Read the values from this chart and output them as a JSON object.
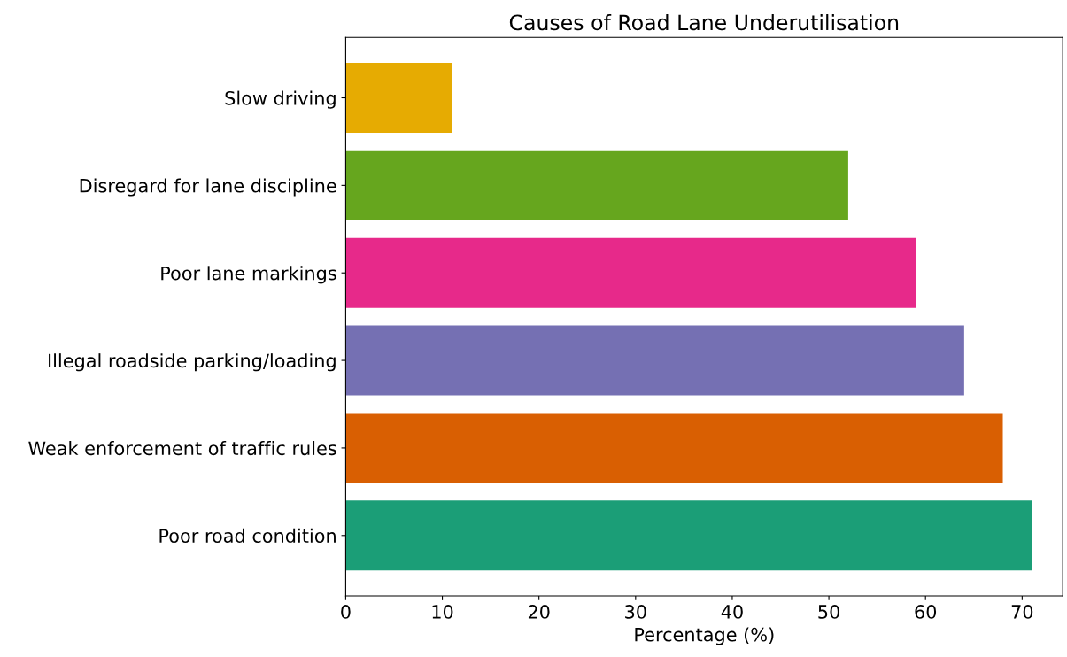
{
  "chart_data": {
    "type": "bar",
    "orientation": "horizontal",
    "title": "Causes of Road Lane Underutilisation",
    "xlabel": "Percentage (%)",
    "categories": [
      "Slow driving",
      "Disregard for lane discipline",
      "Poor lane markings",
      "Illegal roadside parking/loading",
      "Weak enforcement of traffic rules",
      "Poor road condition"
    ],
    "values": [
      11,
      52,
      59,
      64,
      68,
      71
    ],
    "colors": [
      "#e6ab02",
      "#66a61e",
      "#e7298a",
      "#7570b3",
      "#d95f02",
      "#1b9e77"
    ],
    "xlim": [
      0,
      74.2
    ],
    "xticks": [
      0,
      10,
      20,
      30,
      40,
      50,
      60,
      70
    ],
    "grid": false,
    "legend": false
  }
}
